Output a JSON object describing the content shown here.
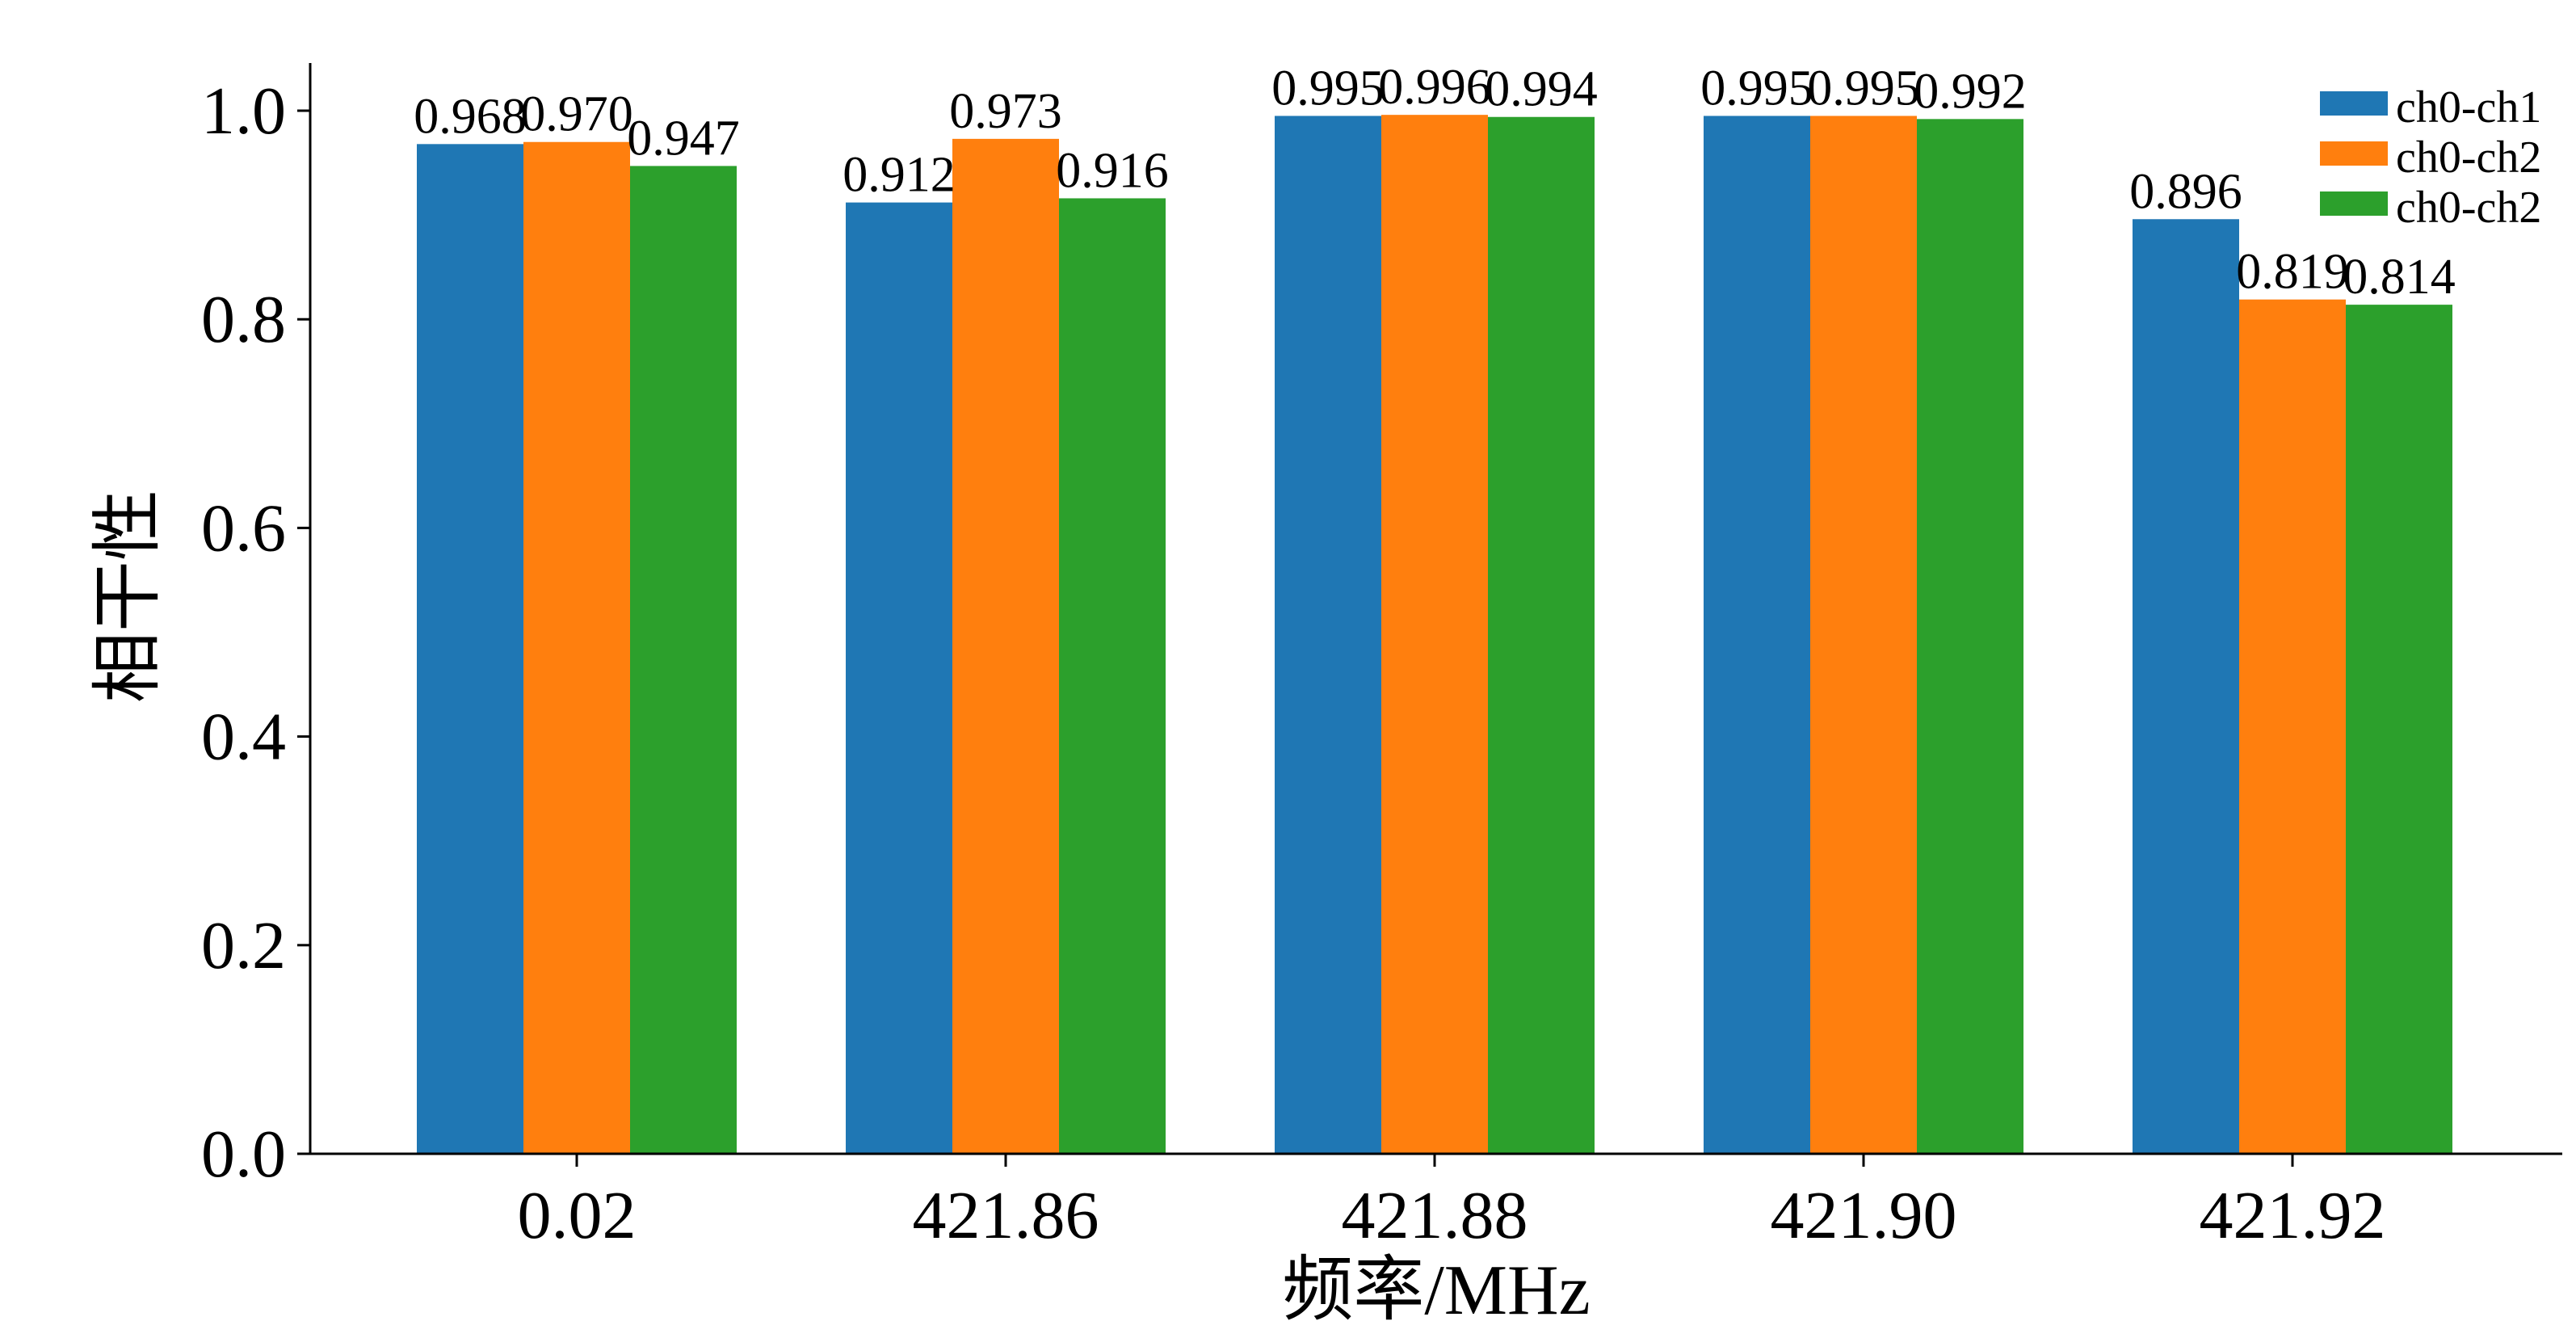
{
  "chart_data": {
    "type": "bar",
    "title": "",
    "xlabel": "频率/MHz",
    "ylabel": "相干性",
    "categories": [
      "0.02",
      "421.86",
      "421.88",
      "421.90",
      "421.92"
    ],
    "series": [
      {
        "name": "ch0-ch1",
        "color": "#1f77b4",
        "values": [
          0.968,
          0.912,
          0.995,
          0.995,
          0.896
        ],
        "labels": [
          "0.968",
          "0.912",
          "0.995",
          "0.995",
          "0.896"
        ]
      },
      {
        "name": "ch0-ch2",
        "color": "#ff7f0e",
        "values": [
          0.97,
          0.973,
          0.996,
          0.995,
          0.819
        ],
        "labels": [
          "0.970",
          "0.973",
          "0.996",
          "0.995",
          "0.819"
        ]
      },
      {
        "name": "ch0-ch2",
        "color": "#2ca02c",
        "values": [
          0.947,
          0.916,
          0.994,
          0.992,
          0.814
        ],
        "labels": [
          "0.947",
          "0.916",
          "0.994",
          "0.992",
          "0.814"
        ]
      }
    ],
    "ylim": [
      0,
      1.05
    ],
    "yticks": [
      "0.0",
      "0.2",
      "0.4",
      "0.6",
      "0.8",
      "1.0"
    ],
    "grid": false,
    "legend_position": "top-right"
  }
}
